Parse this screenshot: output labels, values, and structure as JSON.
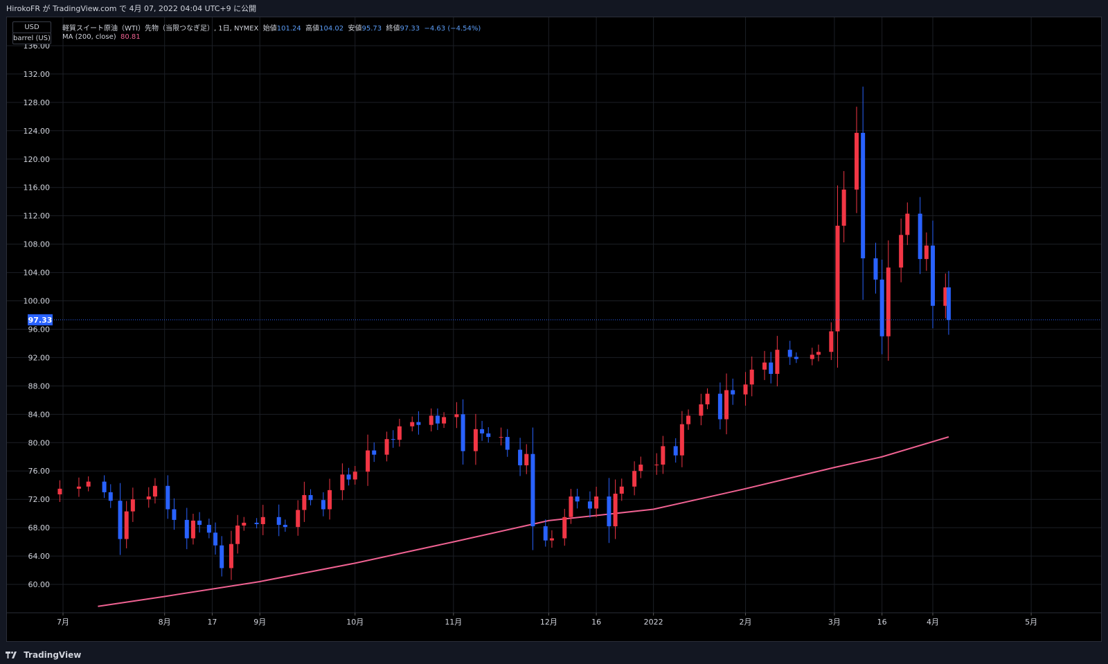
{
  "header": {
    "published": "HirokoFR が TradingView.com で 4月 07, 2022 04:04 UTC+9 に公開"
  },
  "axis_boxes": {
    "currency": "USD",
    "unit": "barrel (US)"
  },
  "legend": {
    "symbol": "軽質スイート原油（WTI）先物（当限つなぎ足）, 1日, NYMEX",
    "open_label": "始値",
    "open": "101.24",
    "high_label": "高値",
    "high": "104.02",
    "low_label": "安値",
    "low": "95.73",
    "close_label": "終値",
    "close": "97.33",
    "change": "−4.63 (−4.54%)",
    "ma_label": "MA (200, close)",
    "ma_value": "80.81"
  },
  "footer": {
    "brand": "TradingView",
    "logo_icon": "tradingview-logo-icon"
  },
  "colors": {
    "up": "#f23645",
    "down": "#2962ff",
    "ma": "#f06292",
    "grid": "#1c1f26",
    "price_line": "#2962ff",
    "background": "#000000"
  },
  "chart_data": {
    "type": "candlestick",
    "title": "軽質スイート原油（WTI）先物（当限つなぎ足）, 1日, NYMEX",
    "ylim": [
      56,
      140
    ],
    "y_ticks": [
      "60.00",
      "64.00",
      "68.00",
      "72.00",
      "76.00",
      "80.00",
      "84.00",
      "88.00",
      "92.00",
      "96.00",
      "100.00",
      "104.00",
      "108.00",
      "112.00",
      "116.00",
      "120.00",
      "124.00",
      "128.00",
      "132.00",
      "136.00"
    ],
    "last_price_label": "97.33",
    "last_price": 97.33,
    "x_ticks": [
      {
        "label": "7月",
        "date": "2021-07-01"
      },
      {
        "label": "8月",
        "date": "2021-08-02"
      },
      {
        "label": "17",
        "date": "2021-08-17"
      },
      {
        "label": "9月",
        "date": "2021-09-01"
      },
      {
        "label": "10月",
        "date": "2021-10-01"
      },
      {
        "label": "11月",
        "date": "2021-11-01"
      },
      {
        "label": "12月",
        "date": "2021-12-01"
      },
      {
        "label": "16",
        "date": "2021-12-16"
      },
      {
        "label": "2022",
        "date": "2022-01-03"
      },
      {
        "label": "2月",
        "date": "2022-02-01"
      },
      {
        "label": "3月",
        "date": "2022-03-01"
      },
      {
        "label": "16",
        "date": "2022-03-16"
      },
      {
        "label": "4月",
        "date": "2022-04-01"
      },
      {
        "label": "5月",
        "date": "2022-05-02"
      }
    ],
    "close_series": [
      {
        "date": "2021-06-30",
        "close": 73.5
      },
      {
        "date": "2021-07-06",
        "close": 73.8
      },
      {
        "date": "2021-07-09",
        "close": 74.5
      },
      {
        "date": "2021-07-14",
        "close": 73.0
      },
      {
        "date": "2021-07-16",
        "close": 71.8
      },
      {
        "date": "2021-07-19",
        "close": 66.4
      },
      {
        "date": "2021-07-21",
        "close": 70.3
      },
      {
        "date": "2021-07-23",
        "close": 72.0
      },
      {
        "date": "2021-07-28",
        "close": 72.4
      },
      {
        "date": "2021-07-30",
        "close": 73.9
      },
      {
        "date": "2021-08-03",
        "close": 70.6
      },
      {
        "date": "2021-08-05",
        "close": 69.1
      },
      {
        "date": "2021-08-09",
        "close": 66.5
      },
      {
        "date": "2021-08-11",
        "close": 69.0
      },
      {
        "date": "2021-08-13",
        "close": 68.4
      },
      {
        "date": "2021-08-16",
        "close": 67.3
      },
      {
        "date": "2021-08-18",
        "close": 65.5
      },
      {
        "date": "2021-08-20",
        "close": 62.3
      },
      {
        "date": "2021-08-23",
        "close": 65.7
      },
      {
        "date": "2021-08-25",
        "close": 68.3
      },
      {
        "date": "2021-08-27",
        "close": 68.7
      },
      {
        "date": "2021-08-31",
        "close": 68.5
      },
      {
        "date": "2021-09-02",
        "close": 69.5
      },
      {
        "date": "2021-09-07",
        "close": 68.4
      },
      {
        "date": "2021-09-09",
        "close": 68.1
      },
      {
        "date": "2021-09-13",
        "close": 70.5
      },
      {
        "date": "2021-09-15",
        "close": 72.6
      },
      {
        "date": "2021-09-17",
        "close": 71.9
      },
      {
        "date": "2021-09-21",
        "close": 70.6
      },
      {
        "date": "2021-09-23",
        "close": 73.3
      },
      {
        "date": "2021-09-27",
        "close": 75.5
      },
      {
        "date": "2021-09-29",
        "close": 74.8
      },
      {
        "date": "2021-10-01",
        "close": 75.9
      },
      {
        "date": "2021-10-05",
        "close": 78.9
      },
      {
        "date": "2021-10-07",
        "close": 78.3
      },
      {
        "date": "2021-10-11",
        "close": 80.5
      },
      {
        "date": "2021-10-13",
        "close": 80.4
      },
      {
        "date": "2021-10-15",
        "close": 82.3
      },
      {
        "date": "2021-10-19",
        "close": 82.9
      },
      {
        "date": "2021-10-21",
        "close": 82.5
      },
      {
        "date": "2021-10-25",
        "close": 83.8
      },
      {
        "date": "2021-10-27",
        "close": 82.7
      },
      {
        "date": "2021-10-29",
        "close": 83.6
      },
      {
        "date": "2021-11-02",
        "close": 84.0
      },
      {
        "date": "2021-11-04",
        "close": 78.8
      },
      {
        "date": "2021-11-08",
        "close": 81.9
      },
      {
        "date": "2021-11-10",
        "close": 81.3
      },
      {
        "date": "2021-11-12",
        "close": 80.8
      },
      {
        "date": "2021-11-16",
        "close": 80.8
      },
      {
        "date": "2021-11-18",
        "close": 79.0
      },
      {
        "date": "2021-11-22",
        "close": 76.8
      },
      {
        "date": "2021-11-24",
        "close": 78.4
      },
      {
        "date": "2021-11-26",
        "close": 68.2
      },
      {
        "date": "2021-11-30",
        "close": 66.2
      },
      {
        "date": "2021-12-02",
        "close": 66.5
      },
      {
        "date": "2021-12-06",
        "close": 69.5
      },
      {
        "date": "2021-12-08",
        "close": 72.4
      },
      {
        "date": "2021-12-10",
        "close": 71.7
      },
      {
        "date": "2021-12-14",
        "close": 70.7
      },
      {
        "date": "2021-12-16",
        "close": 72.4
      },
      {
        "date": "2021-12-20",
        "close": 68.2
      },
      {
        "date": "2021-12-22",
        "close": 72.8
      },
      {
        "date": "2021-12-24",
        "close": 73.8
      },
      {
        "date": "2021-12-28",
        "close": 76.0
      },
      {
        "date": "2021-12-30",
        "close": 76.9
      },
      {
        "date": "2022-01-04",
        "close": 76.9
      },
      {
        "date": "2022-01-06",
        "close": 79.5
      },
      {
        "date": "2022-01-10",
        "close": 78.2
      },
      {
        "date": "2022-01-12",
        "close": 82.6
      },
      {
        "date": "2022-01-14",
        "close": 83.8
      },
      {
        "date": "2022-01-18",
        "close": 85.4
      },
      {
        "date": "2022-01-20",
        "close": 86.9
      },
      {
        "date": "2022-01-24",
        "close": 83.3
      },
      {
        "date": "2022-01-26",
        "close": 87.4
      },
      {
        "date": "2022-01-28",
        "close": 86.8
      },
      {
        "date": "2022-02-01",
        "close": 88.2
      },
      {
        "date": "2022-02-03",
        "close": 90.3
      },
      {
        "date": "2022-02-07",
        "close": 91.3
      },
      {
        "date": "2022-02-09",
        "close": 89.7
      },
      {
        "date": "2022-02-11",
        "close": 93.1
      },
      {
        "date": "2022-02-15",
        "close": 92.1
      },
      {
        "date": "2022-02-17",
        "close": 91.8
      },
      {
        "date": "2022-02-22",
        "close": 92.4
      },
      {
        "date": "2022-02-24",
        "close": 92.8
      },
      {
        "date": "2022-02-28",
        "close": 95.7
      },
      {
        "date": "2022-03-02",
        "close": 110.6
      },
      {
        "date": "2022-03-04",
        "close": 115.7
      },
      {
        "date": "2022-03-08",
        "close": 123.7
      },
      {
        "date": "2022-03-10",
        "close": 106.0
      },
      {
        "date": "2022-03-14",
        "close": 103.0
      },
      {
        "date": "2022-03-16",
        "close": 95.0
      },
      {
        "date": "2022-03-18",
        "close": 104.7
      },
      {
        "date": "2022-03-22",
        "close": 109.3
      },
      {
        "date": "2022-03-24",
        "close": 112.3
      },
      {
        "date": "2022-03-28",
        "close": 105.9
      },
      {
        "date": "2022-03-30",
        "close": 107.8
      },
      {
        "date": "2022-04-01",
        "close": 99.3
      },
      {
        "date": "2022-04-05",
        "close": 101.9
      },
      {
        "date": "2022-04-06",
        "close": 97.3
      }
    ],
    "ma200": [
      {
        "date": "2021-07-12",
        "value": 56.9
      },
      {
        "date": "2021-08-02",
        "value": 58.3
      },
      {
        "date": "2021-09-01",
        "value": 60.4
      },
      {
        "date": "2021-10-01",
        "value": 63.0
      },
      {
        "date": "2021-11-01",
        "value": 66.0
      },
      {
        "date": "2021-12-01",
        "value": 69.0
      },
      {
        "date": "2022-01-03",
        "value": 70.6
      },
      {
        "date": "2022-02-01",
        "value": 73.5
      },
      {
        "date": "2022-03-01",
        "value": 76.5
      },
      {
        "date": "2022-03-16",
        "value": 78.0
      },
      {
        "date": "2022-04-06",
        "value": 80.81
      }
    ]
  }
}
